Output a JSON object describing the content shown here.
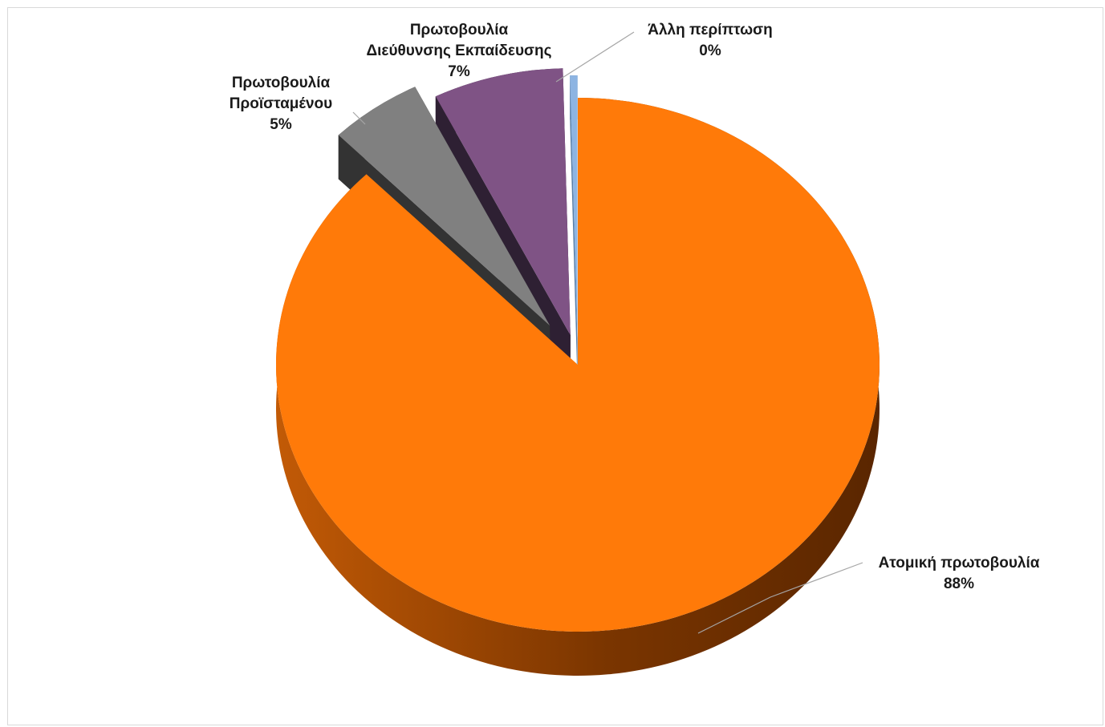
{
  "chart_data": {
    "type": "pie",
    "style": "3d-exploded",
    "title": "",
    "legend": "none",
    "slices": [
      {
        "label_lines": [
          "Ατομική πρωτοβουλία"
        ],
        "value": 88,
        "pct_label": "88%",
        "color": "#ff7a09",
        "side_color": "#8a3d02"
      },
      {
        "label_lines": [
          "Πρωτοβουλία",
          "Προϊσταμένου"
        ],
        "value": 5,
        "pct_label": "5%",
        "color": "#808080",
        "side_color": "#333333"
      },
      {
        "label_lines": [
          "Πρωτοβουλία",
          "Διεύθυνσης Εκπαίδευσης"
        ],
        "value": 7,
        "pct_label": "7%",
        "color": "#7f5385",
        "side_color": "#2e2033"
      },
      {
        "label_lines": [
          "Άλλη περίπτωση"
        ],
        "value": 0.4,
        "pct_label": "0%",
        "color": "#8db4e2",
        "side_color": "#5a7fa8"
      }
    ]
  }
}
